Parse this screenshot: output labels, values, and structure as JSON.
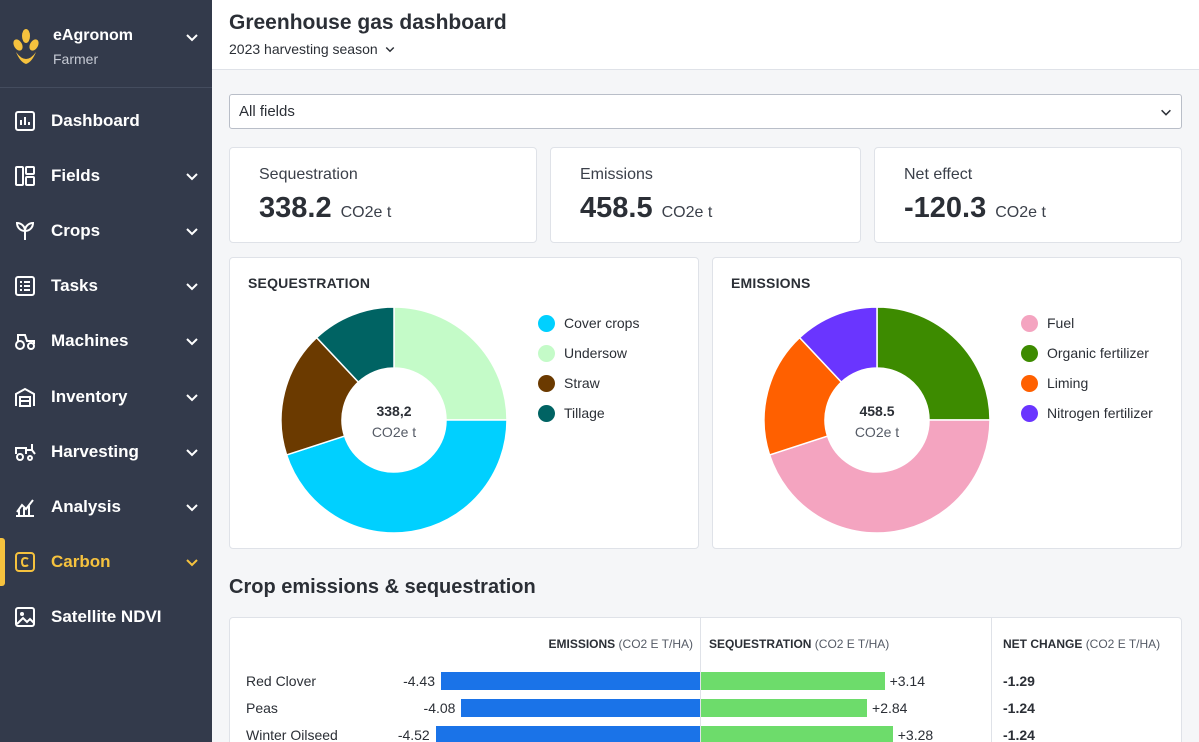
{
  "brand": {
    "name": "eAgronom",
    "role": "Farmer"
  },
  "nav": [
    {
      "label": "Dashboard",
      "icon": "chart-box-icon",
      "chevron": false
    },
    {
      "label": "Fields",
      "icon": "fields-icon",
      "chevron": true
    },
    {
      "label": "Crops",
      "icon": "sprout-icon",
      "chevron": true
    },
    {
      "label": "Tasks",
      "icon": "checklist-icon",
      "chevron": true
    },
    {
      "label": "Machines",
      "icon": "tractor-icon",
      "chevron": true
    },
    {
      "label": "Inventory",
      "icon": "warehouse-icon",
      "chevron": true
    },
    {
      "label": "Harvesting",
      "icon": "harvester-icon",
      "chevron": true
    },
    {
      "label": "Analysis",
      "icon": "analysis-icon",
      "chevron": true
    },
    {
      "label": "Carbon",
      "icon": "carbon-icon",
      "chevron": true,
      "active": true
    },
    {
      "label": "Satellite NDVI",
      "icon": "image-icon",
      "chevron": false
    }
  ],
  "header": {
    "title": "Greenhouse gas dashboard",
    "season": "2023 harvesting season"
  },
  "field_select": {
    "value": "All fields"
  },
  "stats": [
    {
      "label": "Sequestration",
      "value": "338.2",
      "unit": "CO2e t"
    },
    {
      "label": "Emissions",
      "value": "458.5",
      "unit": "CO2e t"
    },
    {
      "label": "Net effect",
      "value": "-120.3",
      "unit": "CO2e t"
    }
  ],
  "colors": {
    "accent": "#f6c23e",
    "sidebar": "#333a4b",
    "emissions_bar": "#1a73e8",
    "sequestration_bar": "#6ddc6b"
  },
  "chart_data": [
    {
      "type": "pie",
      "title": "SEQUESTRATION",
      "center_value": "338,2",
      "center_unit": "CO2e t",
      "slices": [
        {
          "name": "Cover crops",
          "value": 45,
          "color": "#00d0ff"
        },
        {
          "name": "Undersow",
          "value": 25,
          "color": "#c4fbc8"
        },
        {
          "name": "Straw",
          "value": 18,
          "color": "#6b3a00"
        },
        {
          "name": "Tillage",
          "value": 12,
          "color": "#006363"
        }
      ],
      "start": "top",
      "order": [
        "Undersow",
        "Cover crops",
        "Straw",
        "Tillage"
      ],
      "legend": "right"
    },
    {
      "type": "pie",
      "title": "EMISSIONS",
      "center_value": "458.5",
      "center_unit": "CO2e t",
      "slices": [
        {
          "name": "Fuel",
          "value": 45,
          "color": "#f4a4c0"
        },
        {
          "name": "Organic fertilizer",
          "value": 25,
          "color": "#3d8b00"
        },
        {
          "name": "Liming",
          "value": 18,
          "color": "#ff6000"
        },
        {
          "name": "Nitrogen fertilizer",
          "value": 12,
          "color": "#6a35ff"
        }
      ],
      "start": "top",
      "order": [
        "Organic fertilizer",
        "Fuel",
        "Liming",
        "Nitrogen fertilizer"
      ],
      "legend": "right"
    },
    {
      "type": "bar",
      "title": "Crop emissions & sequestration",
      "columns": {
        "emissions": {
          "label": "EMISSIONS",
          "unit": "(CO2 E T/HA)"
        },
        "sequestration": {
          "label": "SEQUESTRATION",
          "unit": "(CO2 E T/HA)"
        },
        "net": {
          "label": "NET CHANGE",
          "unit": "(CO2 E T/HA)"
        }
      },
      "categories": [
        "Red Clover",
        "Peas",
        "Winter Oilseed"
      ],
      "series": [
        {
          "name": "EMISSIONS",
          "values": [
            -4.43,
            -4.08,
            -4.52
          ],
          "labels": [
            "-4.43",
            "-4.08",
            "-4.52"
          ]
        },
        {
          "name": "SEQUESTRATION",
          "values": [
            3.14,
            2.84,
            3.28
          ],
          "labels": [
            "+3.14",
            "+2.84",
            "+3.28"
          ]
        },
        {
          "name": "NET CHANGE",
          "values": [
            -1.29,
            -1.24,
            -1.24
          ],
          "labels": [
            "-1.29",
            "-1.24",
            "-1.24"
          ]
        }
      ],
      "xlim": [
        -5.0,
        3.5
      ]
    }
  ]
}
